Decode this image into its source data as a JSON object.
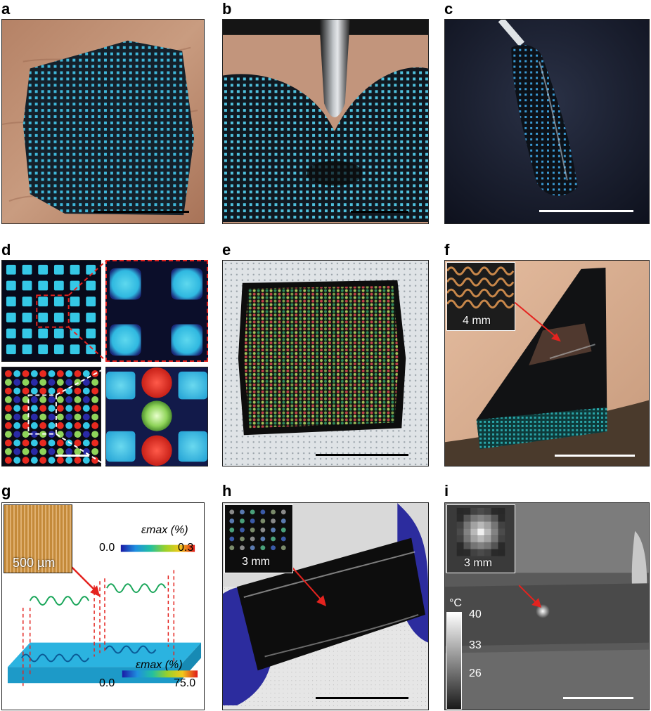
{
  "panels": {
    "a": {
      "label": "a"
    },
    "b": {
      "label": "b"
    },
    "c": {
      "label": "c"
    },
    "d": {
      "label": "d"
    },
    "e": {
      "label": "e"
    },
    "f": {
      "label": "f",
      "inset_scale": "4 mm"
    },
    "g": {
      "label": "g",
      "inset_scale": "500 µm",
      "colorbar_top": {
        "title": "εmax (%)",
        "min": "0.0",
        "max": "0.3"
      },
      "colorbar_bottom": {
        "title": "εmax (%)",
        "min": "0.0",
        "max": "75.0"
      }
    },
    "h": {
      "label": "h",
      "inset_scale": "3 mm"
    },
    "i": {
      "label": "i",
      "inset_scale": "3 mm",
      "temp_unit": "°C",
      "temp_ticks": [
        "40",
        "33",
        "26"
      ]
    }
  },
  "colors": {
    "pixel_blue": "#35c8e6",
    "led_red": "#e82a20",
    "led_green": "#8fd45a",
    "arrow_red": "#e4231f",
    "dashed_red": "#e4231f",
    "skin": "#c79a7c"
  }
}
